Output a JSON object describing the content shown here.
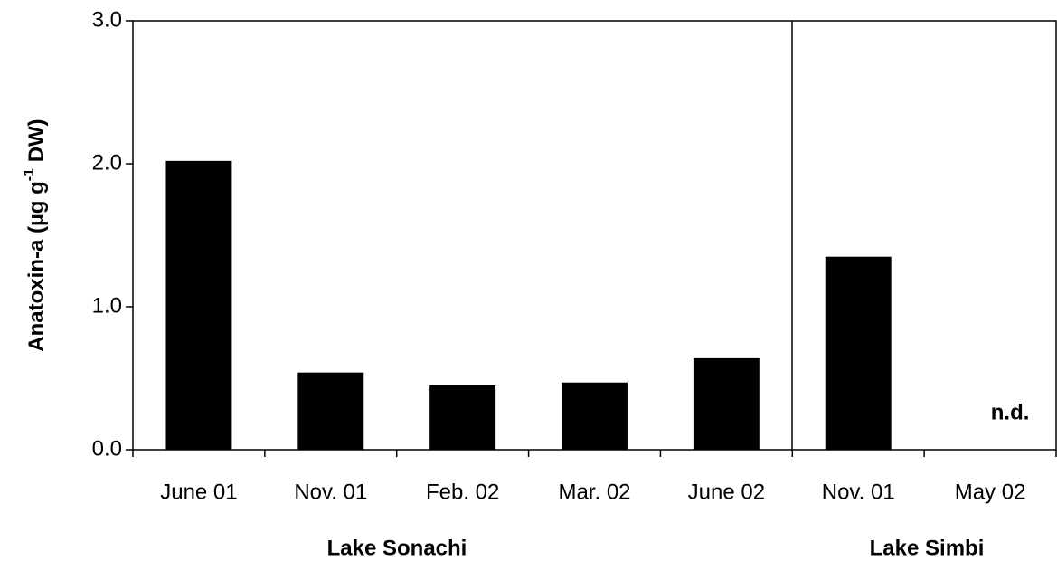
{
  "chart_data": {
    "type": "bar",
    "y_label": [
      "Anatoxin-a (µg g",
      "-1",
      " DW)"
    ],
    "categories": [
      "June 01",
      "Nov. 01",
      "Feb. 02",
      "Mar. 02",
      "June 02",
      "Nov. 01",
      "May 02"
    ],
    "values": [
      2.02,
      0.54,
      0.45,
      0.47,
      0.64,
      1.35,
      null
    ],
    "color": "#000000",
    "groups": [
      "Lake Sonachi",
      "Lake Simbi"
    ],
    "annotation": "n.d.",
    "ylim": [
      0,
      3
    ],
    "yticks": [
      {
        "value": 0,
        "label": "0.0"
      },
      {
        "value": 1,
        "label": "1.0"
      },
      {
        "value": 2,
        "label": "2.0"
      },
      {
        "value": 3,
        "label": "3.0"
      }
    ],
    "grid": false
  }
}
